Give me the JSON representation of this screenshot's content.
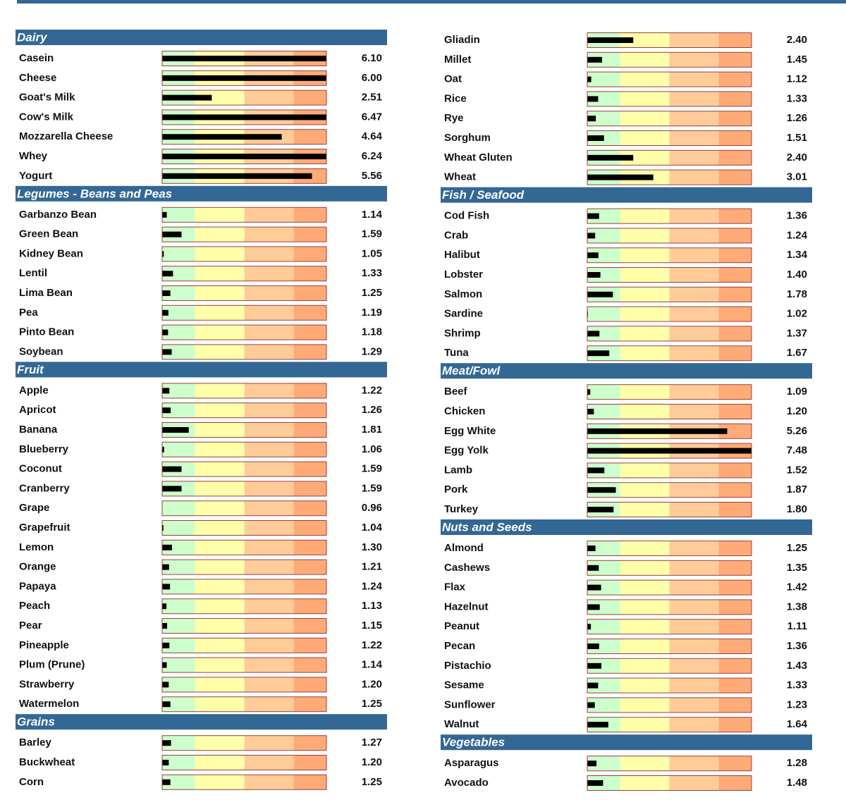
{
  "chart_data": {
    "type": "bar",
    "xlim": [
      1,
      6
    ],
    "bar_color": "#000000",
    "header_color": "#336895",
    "border_color": "#9a4040",
    "zones": [
      {
        "from": 1,
        "to": 2,
        "color": "#ccffcc"
      },
      {
        "from": 2,
        "to": 3.5,
        "color": "#ffffaa"
      },
      {
        "from": 3.5,
        "to": 5,
        "color": "#ffcc99"
      },
      {
        "from": 5,
        "to": 6,
        "color": "#ffaa77"
      }
    ],
    "groups": [
      {
        "name": "Dairy",
        "categories": [
          "Casein",
          "Cheese",
          "Goat's Milk",
          "Cow's Milk",
          "Mozzarella Cheese",
          "Whey",
          "Yogurt"
        ],
        "values": [
          6.1,
          6,
          2.51,
          6.47,
          4.64,
          6.24,
          5.56
        ],
        "value_labels": [
          "6.10",
          "6.00",
          "2.51",
          "6.47",
          "4.64",
          "6.24",
          "5.56"
        ]
      },
      {
        "name": "Legumes - Beans and Peas",
        "categories": [
          "Garbanzo Bean",
          "Green Bean",
          "Kidney Bean",
          "Lentil",
          "Lima Bean",
          "Pea",
          "Pinto Bean",
          "Soybean"
        ],
        "values": [
          1.14,
          1.59,
          1.05,
          1.33,
          1.25,
          1.19,
          1.18,
          1.29
        ],
        "value_labels": [
          "1.14",
          "1.59",
          "1.05",
          "1.33",
          "1.25",
          "1.19",
          "1.18",
          "1.29"
        ]
      },
      {
        "name": "Fruit",
        "categories": [
          "Apple",
          "Apricot",
          "Banana",
          "Blueberry",
          "Coconut",
          "Cranberry",
          "Grape",
          "Grapefruit",
          "Lemon",
          "Orange",
          "Papaya",
          "Peach",
          "Pear",
          "Pineapple",
          "Plum (Prune)",
          "Strawberry",
          "Watermelon"
        ],
        "values": [
          1.22,
          1.26,
          1.81,
          1.06,
          1.59,
          1.59,
          0.96,
          1.04,
          1.3,
          1.21,
          1.24,
          1.13,
          1.15,
          1.22,
          1.14,
          1.2,
          1.25
        ],
        "value_labels": [
          "1.22",
          "1.26",
          "1.81",
          "1.06",
          "1.59",
          "1.59",
          "0.96",
          "1.04",
          "1.30",
          "1.21",
          "1.24",
          "1.13",
          "1.15",
          "1.22",
          "1.14",
          "1.20",
          "1.25"
        ]
      },
      {
        "name": "Grains",
        "categories": [
          "Barley",
          "Buckwheat",
          "Corn"
        ],
        "values": [
          1.27,
          1.2,
          1.25
        ],
        "value_labels": [
          "1.27",
          "1.20",
          "1.25"
        ]
      },
      {
        "categories": [
          "Gliadin",
          "Millet",
          "Oat",
          "Rice",
          "Rye",
          "Sorghum",
          "Wheat Gluten",
          "Wheat"
        ],
        "values": [
          2.4,
          1.45,
          1.12,
          1.33,
          1.26,
          1.51,
          2.4,
          3.01
        ],
        "value_labels": [
          "2.40",
          "1.45",
          "1.12",
          "1.33",
          "1.26",
          "1.51",
          "2.40",
          "3.01"
        ]
      },
      {
        "name": "Fish / Seafood",
        "categories": [
          "Cod Fish",
          "Crab",
          "Halibut",
          "Lobster",
          "Salmon",
          "Sardine",
          "Shrimp",
          "Tuna"
        ],
        "values": [
          1.36,
          1.24,
          1.34,
          1.4,
          1.78,
          1.02,
          1.37,
          1.67
        ],
        "value_labels": [
          "1.36",
          "1.24",
          "1.34",
          "1.40",
          "1.78",
          "1.02",
          "1.37",
          "1.67"
        ]
      },
      {
        "name": "Meat/Fowl",
        "categories": [
          "Beef",
          "Chicken",
          "Egg White",
          "Egg Yolk",
          "Lamb",
          "Pork",
          "Turkey"
        ],
        "values": [
          1.09,
          1.2,
          5.26,
          7.48,
          1.52,
          1.87,
          1.8
        ],
        "value_labels": [
          "1.09",
          "1.20",
          "5.26",
          "7.48",
          "1.52",
          "1.87",
          "1.80"
        ]
      },
      {
        "name": "Nuts and Seeds",
        "categories": [
          "Almond",
          "Cashews",
          "Flax",
          "Hazelnut",
          "Peanut",
          "Pecan",
          "Pistachio",
          "Sesame",
          "Sunflower",
          "Walnut"
        ],
        "values": [
          1.25,
          1.35,
          1.42,
          1.38,
          1.11,
          1.36,
          1.43,
          1.33,
          1.23,
          1.64
        ],
        "value_labels": [
          "1.25",
          "1.35",
          "1.42",
          "1.38",
          "1.11",
          "1.36",
          "1.43",
          "1.33",
          "1.23",
          "1.64"
        ]
      },
      {
        "name": "Vegetables",
        "categories": [
          "Asparagus",
          "Avocado"
        ],
        "values": [
          1.28,
          1.48
        ],
        "value_labels": [
          "1.28",
          "1.48"
        ]
      }
    ]
  }
}
